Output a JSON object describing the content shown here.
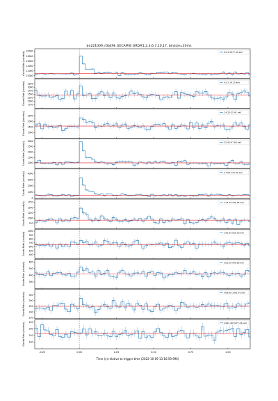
{
  "figure": {
    "title": "bn221009_r0b49k  GECAM-B GRD#1,2,3,6,7,10,17, binsize=20ms",
    "xlabel": "Time (s) relative to trigger time (2022-10-09 13:16:59.996)",
    "ylabel": "Counts Rate (counts/s)"
  },
  "colors": {
    "step": "#1f77b4",
    "background": "#e8262e",
    "trigger": "#e8262e",
    "axis": "#000000"
  },
  "chart_data": {
    "type": "line",
    "style": "step histogram with error bars, red background line, red dashed trigger line at x=0",
    "xlim": [
      -0.3,
      1.15
    ],
    "xticks": [
      -0.25,
      0.0,
      0.25,
      0.5,
      0.75,
      1.0
    ],
    "xtick_labels": [
      "-0.25",
      "0.00",
      "0.25",
      "0.50",
      "0.75",
      "1.00"
    ],
    "trigger_time": 0.0,
    "panels": [
      {
        "legend": "8.01-5477.41 keV",
        "ylim": [
          9000,
          21000
        ],
        "yticks": [
          10000,
          12000,
          14000,
          16000,
          18000,
          20000
        ],
        "background": 10850,
        "noise": 450,
        "peak": 7000
      },
      {
        "legend": "8.01-14.25 keV",
        "ylim": [
          1500,
          3600
        ],
        "yticks": [
          1750,
          2000,
          2250,
          2500,
          2750,
          3000,
          3250
        ],
        "background": 2450,
        "noise": 240,
        "peak": 600
      },
      {
        "legend": "14.25-25.41 keV",
        "ylim": [
          500,
          3100
        ],
        "yticks": [
          1000,
          1500,
          2000,
          2500
        ],
        "background": 1580,
        "noise": 260,
        "peak": 800
      },
      {
        "legend": "25.41-47.66 keV",
        "ylim": [
          500,
          3200
        ],
        "yticks": [
          1000,
          1500,
          2000,
          2500,
          3000
        ],
        "background": 1000,
        "noise": 140,
        "peak": 1900
      },
      {
        "legend": "47.66-123.44 keV",
        "ylim": [
          0,
          4700
        ],
        "yticks": [
          0,
          1000,
          2000,
          3000,
          4000
        ],
        "background": 520,
        "noise": 150,
        "peak": 2900
      },
      {
        "legend": "123.44-196.95 keV",
        "ylim": [
          500,
          1900
        ],
        "yticks": [
          750,
          1000,
          1250,
          1500,
          1750
        ],
        "background": 900,
        "noise": 110,
        "peak": 550
      },
      {
        "legend": "196.95-500.00 keV",
        "ylim": [
          300,
          1050
        ],
        "yticks": [
          400,
          500,
          600,
          700,
          800,
          900,
          1000
        ],
        "background": 660,
        "noise": 75,
        "peak": 140
      },
      {
        "legend": "500.00-999.80 keV",
        "ylim": [
          200,
          640
        ],
        "yticks": [
          300,
          400,
          500,
          600
        ],
        "background": 420,
        "noise": 45,
        "peak": 90
      },
      {
        "legend": "999.80-1991.40 keV",
        "ylim": [
          140,
          400
        ],
        "yticks": [
          150,
          200,
          250,
          300,
          350
        ],
        "background": 250,
        "noise": 32,
        "peak": 25
      },
      {
        "legend": "1991.40-5477.41 keV",
        "ylim": [
          50,
          270
        ],
        "yticks": [
          100,
          150,
          200,
          250
        ],
        "background": 165,
        "noise": 30,
        "peak": 15
      }
    ]
  }
}
